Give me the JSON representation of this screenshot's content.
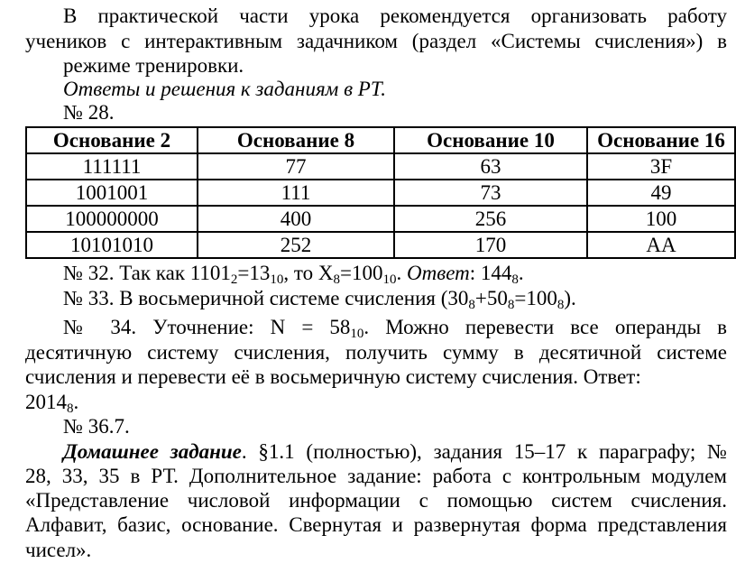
{
  "p1": [
    "В практической части урока рекомендуется организовать работу",
    "учеников с интерактивным задачником (раздел «Системы счисления») в",
    "режиме тренировки."
  ],
  "answers_heading": "Ответы и решения к заданиям в РТ.",
  "n28": "№ 28.",
  "table": {
    "headers": [
      "Основание 2",
      "Основание 8",
      "Основание 10",
      "Основание 16"
    ],
    "rows": [
      [
        "111111",
        "77",
        "63",
        "3F"
      ],
      [
        "1001001",
        "111",
        "73",
        "49"
      ],
      [
        "100000000",
        "400",
        "256",
        "100"
      ],
      [
        "10101010",
        "252",
        "170",
        "AA"
      ]
    ]
  },
  "n32": {
    "a": "№ 32. Так как 1101",
    "s1": "2",
    "b": "=13",
    "s2": "10",
    "c": ", то X",
    "s3": "8",
    "d": "=100",
    "s4": "10",
    "e": ". ",
    "ans": "Ответ",
    "f": ": 144",
    "s5": "8",
    "g": "."
  },
  "n33": {
    "a": "№ 33. В восьмеричной системе счисления (30",
    "s1": "8",
    "b": "+50",
    "s2": "8",
    "c": "=100",
    "s3": "8",
    "d": ")."
  },
  "n34": {
    "l1a": "№ 34. Уточнение: N = 58",
    "l1s": "10",
    "l1b": ". Можно перевести все операнды в",
    "l2": "десятичную систему счисления, получить сумму в десятичной системе",
    "l3": "счисления и перевести её в восьмеричную систему счисления. Ответ:",
    "l4a": "2014",
    "l4s": "8",
    "l4b": "."
  },
  "n36": "№ 36.7.",
  "hw": {
    "title": "Домашнее задание",
    "l1": ". §1.1 (полностью), задания 15–17 к параграфу; №",
    "l2": "28, 33, 35 в РТ. Дополнительное задание: работа с контрольным модулем",
    "l3": "«Представление числовой информации с помощью систем счисления.",
    "l4": "Алфавит, базис, основание. Свернутая и развернутая форма представления",
    "l5": "чисел»."
  }
}
